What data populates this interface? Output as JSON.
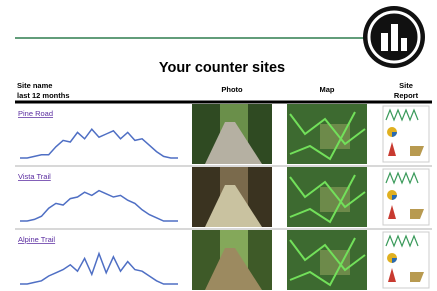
{
  "header": {
    "title": "Your counter sites"
  },
  "table": {
    "columns": [
      [
        "Site name",
        "last 12 months"
      ],
      [
        "Photo"
      ],
      [
        "Map"
      ],
      [
        "Site",
        "Report"
      ]
    ],
    "rows": [
      {
        "site": "Pine Road"
      },
      {
        "site": "Vista Trail"
      },
      {
        "site": "Alpine Trail"
      }
    ]
  }
}
